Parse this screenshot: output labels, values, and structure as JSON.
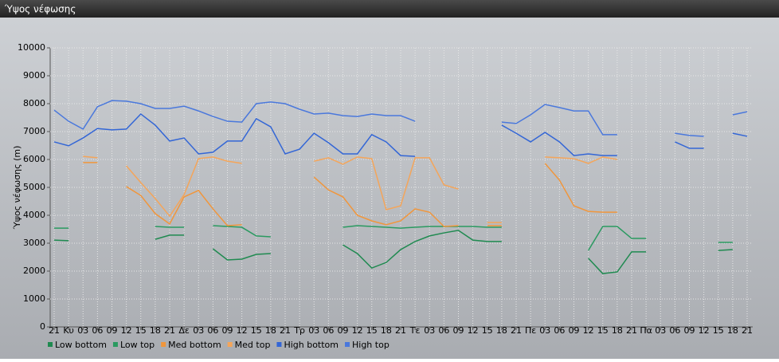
{
  "chart_data": {
    "type": "line",
    "title": "Ύψος νέφωσης",
    "y_label": "Ύψος νέφωσης (m)",
    "categories": [
      "21",
      "Κυ",
      "03",
      "06",
      "09",
      "12",
      "15",
      "18",
      "21",
      "Δε",
      "03",
      "06",
      "09",
      "12",
      "15",
      "18",
      "21",
      "Τρ",
      "03",
      "06",
      "09",
      "12",
      "15",
      "18",
      "21",
      "Τε",
      "03",
      "06",
      "09",
      "12",
      "15",
      "18",
      "21",
      "Πε",
      "03",
      "06",
      "09",
      "12",
      "15",
      "18",
      "21",
      "Πα",
      "03",
      "06",
      "09",
      "12",
      "15",
      "18",
      "21"
    ],
    "ylim": [
      0,
      10000
    ],
    "yticks": [
      0,
      1000,
      2000,
      3000,
      4000,
      5000,
      6000,
      7000,
      8000,
      9000,
      10000
    ],
    "grid": true,
    "series": [
      {
        "name": "Low bottom",
        "color": "#1f8a50",
        "values": [
          3110,
          3090,
          null,
          null,
          null,
          null,
          null,
          3140,
          3290,
          3290,
          null,
          2800,
          2400,
          2430,
          2600,
          2630,
          null,
          null,
          null,
          null,
          2940,
          2630,
          2110,
          2310,
          2770,
          3060,
          3260,
          3370,
          3460,
          3110,
          3060,
          3060,
          null,
          null,
          null,
          null,
          null,
          2460,
          1910,
          1970,
          2690,
          2690,
          null,
          null,
          null,
          null,
          2740,
          2770,
          null
        ]
      },
      {
        "name": "Low top",
        "color": "#2a9a60",
        "values": [
          3540,
          3540,
          null,
          null,
          null,
          null,
          null,
          3600,
          3570,
          3570,
          null,
          3630,
          3600,
          3570,
          3260,
          3230,
          null,
          null,
          null,
          null,
          3570,
          3630,
          3600,
          3570,
          3540,
          3570,
          3600,
          3600,
          3600,
          3600,
          3570,
          3570,
          null,
          null,
          null,
          null,
          null,
          2740,
          3600,
          3600,
          3170,
          3170,
          null,
          null,
          null,
          null,
          3030,
          3030,
          null
        ]
      },
      {
        "name": "Med bottom",
        "color": "#f0963c",
        "values": [
          null,
          null,
          5890,
          5890,
          null,
          5030,
          4710,
          4060,
          3690,
          4660,
          4890,
          4230,
          3630,
          3660,
          null,
          null,
          null,
          null,
          5370,
          4910,
          4660,
          4000,
          3800,
          3660,
          3800,
          4230,
          4110,
          3600,
          3630,
          null,
          3630,
          3630,
          null,
          null,
          5860,
          5260,
          4340,
          4140,
          4110,
          4110,
          null,
          null,
          null,
          null,
          null,
          null,
          null,
          null,
          null
        ]
      },
      {
        "name": "Med top",
        "color": "#f4a55a",
        "values": [
          null,
          null,
          6110,
          6060,
          null,
          5770,
          5170,
          4600,
          3970,
          4740,
          6030,
          6090,
          5940,
          5860,
          null,
          null,
          null,
          null,
          5940,
          6060,
          5830,
          6090,
          6030,
          4200,
          4340,
          6060,
          6060,
          5090,
          4940,
          null,
          3740,
          3740,
          null,
          null,
          6090,
          6060,
          6030,
          5860,
          6090,
          6000,
          null,
          null,
          null,
          null,
          null,
          null,
          null,
          null,
          null
        ]
      },
      {
        "name": "High bottom",
        "color": "#3366d6",
        "values": [
          6630,
          6490,
          6770,
          7110,
          7060,
          7090,
          7630,
          7230,
          6660,
          6770,
          6200,
          6260,
          6660,
          6660,
          7460,
          7170,
          6200,
          6370,
          6940,
          6600,
          6200,
          6200,
          6890,
          6630,
          6140,
          6110,
          null,
          null,
          null,
          null,
          null,
          7230,
          6940,
          6630,
          6970,
          6630,
          6140,
          6200,
          6140,
          6140,
          null,
          null,
          null,
          6630,
          6400,
          6400,
          null,
          6940,
          6830
        ]
      },
      {
        "name": "High top",
        "color": "#4a78dc",
        "values": [
          7770,
          7370,
          7090,
          7890,
          8110,
          8090,
          8000,
          7830,
          7830,
          7910,
          7740,
          7540,
          7370,
          7340,
          8000,
          8060,
          8000,
          7800,
          7630,
          7660,
          7570,
          7540,
          7630,
          7570,
          7570,
          7370,
          null,
          null,
          null,
          null,
          null,
          7340,
          7290,
          7600,
          7970,
          7860,
          7740,
          7740,
          6890,
          6890,
          null,
          null,
          null,
          6940,
          6860,
          6830,
          null,
          7600,
          7710
        ]
      }
    ]
  }
}
